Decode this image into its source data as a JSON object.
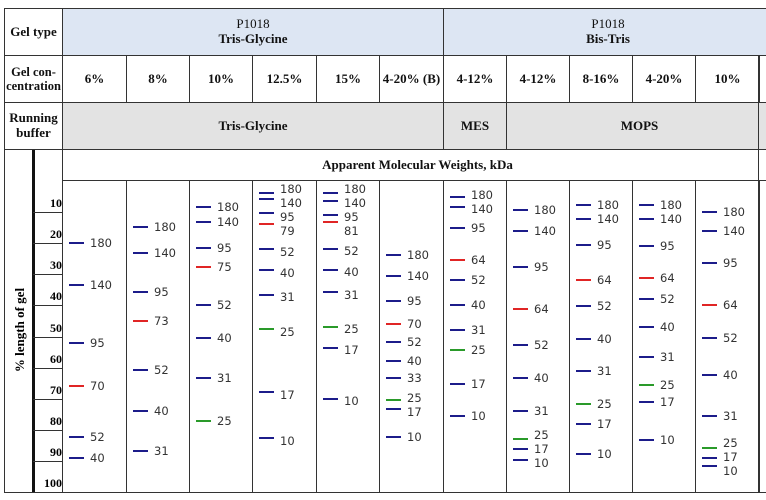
{
  "header": {
    "gel_type_label": "Gel type",
    "gel_conc_label": "Gel con-centration",
    "running_buffer_label": "Running buffer",
    "groups": [
      {
        "product": "P1018",
        "chemistry": "Tris-Glycine"
      },
      {
        "product": "P1018",
        "chemistry": "Bis-Tris"
      }
    ],
    "buffers": [
      "Tris-Glycine",
      "MES",
      "MOPS"
    ],
    "mw_title": "Apparent Molecular Weights, kDa"
  },
  "axis": {
    "label": "% length of gel",
    "ticks": [
      "10",
      "20",
      "30",
      "40",
      "50",
      "60",
      "70",
      "80",
      "90",
      "100"
    ]
  },
  "colors": {
    "standard": "#1c1c8a",
    "reference_red": "#e02525",
    "reference_green": "#2a9a2a",
    "header_blue": "#dde6f3",
    "header_gray": "#e3e3e3"
  },
  "chart_data": {
    "type": "table",
    "ylabel": "% length of gel",
    "ylim": [
      0,
      100
    ],
    "lanes": [
      {
        "concentration": "6%",
        "bands": [
          [
            180,
            19.8,
            "b"
          ],
          [
            140,
            33.5,
            "b"
          ],
          [
            95,
            52,
            "b"
          ],
          [
            70,
            65.8,
            "r"
          ],
          [
            52,
            82.3,
            "b"
          ],
          [
            40,
            89,
            "b"
          ]
        ]
      },
      {
        "concentration": "8%",
        "bands": [
          [
            180,
            14.7,
            "b"
          ],
          [
            140,
            23,
            "b"
          ],
          [
            95,
            35.6,
            "b"
          ],
          [
            73,
            45,
            "r"
          ],
          [
            52,
            60.8,
            "b"
          ],
          [
            40,
            73.8,
            "b"
          ],
          [
            31,
            86.7,
            "b"
          ]
        ]
      },
      {
        "concentration": "10%",
        "bands": [
          [
            180,
            8.3,
            "b"
          ],
          [
            140,
            13.2,
            "b"
          ],
          [
            95,
            21.4,
            "b"
          ],
          [
            75,
            27.7,
            "r"
          ],
          [
            52,
            40,
            "b"
          ],
          [
            40,
            50.5,
            "b"
          ],
          [
            31,
            63.2,
            "b"
          ],
          [
            25,
            77.2,
            "g"
          ]
        ]
      },
      {
        "concentration": "12.5%",
        "bands": [
          [
            180,
            3.9,
            "b"
          ],
          [
            140,
            5.7,
            "b"
          ],
          [
            95,
            10.2,
            "b"
          ],
          [
            79,
            13.8,
            "r"
          ],
          [
            52,
            21.8,
            "b"
          ],
          [
            40,
            28.6,
            "b"
          ],
          [
            31,
            36.5,
            "b"
          ],
          [
            25,
            47.6,
            "g"
          ],
          [
            17,
            68,
            "b"
          ],
          [
            10,
            82.6,
            "b"
          ]
        ]
      },
      {
        "concentration": "15%",
        "bands": [
          [
            180,
            4,
            "b"
          ],
          [
            140,
            6.5,
            "b"
          ],
          [
            95,
            10.8,
            "b"
          ],
          [
            81,
            13.2,
            "r"
          ],
          [
            52,
            21.8,
            "b"
          ],
          [
            40,
            28.5,
            "b"
          ],
          [
            31,
            35.8,
            "b"
          ],
          [
            25,
            46.8,
            "g"
          ],
          [
            17,
            53.6,
            "b"
          ],
          [
            10,
            70,
            "b"
          ]
        ]
      },
      {
        "concentration": "4-20% (B)",
        "bands": [
          [
            180,
            23.8,
            "b"
          ],
          [
            140,
            30.4,
            "b"
          ],
          [
            95,
            38.6,
            "b"
          ],
          [
            70,
            46.1,
            "r"
          ],
          [
            52,
            51.9,
            "b"
          ],
          [
            40,
            57.9,
            "b"
          ],
          [
            33,
            63.2,
            "b"
          ],
          [
            25,
            70.4,
            "g"
          ],
          [
            17,
            73.4,
            "b"
          ],
          [
            10,
            82.2,
            "b"
          ]
        ]
      },
      {
        "concentration": "4-12%",
        "bands": [
          [
            180,
            5.1,
            "b"
          ],
          [
            140,
            8.3,
            "b"
          ],
          [
            95,
            15.1,
            "b"
          ],
          [
            64,
            25.5,
            "r"
          ],
          [
            52,
            31.7,
            "b"
          ],
          [
            40,
            40,
            "b"
          ],
          [
            31,
            47.9,
            "b"
          ],
          [
            25,
            54.3,
            "g"
          ],
          [
            17,
            65.4,
            "b"
          ],
          [
            10,
            75.6,
            "b"
          ]
        ]
      },
      {
        "concentration": "4-12%",
        "bands": [
          [
            180,
            9.4,
            "b"
          ],
          [
            140,
            16.1,
            "b"
          ],
          [
            95,
            27.5,
            "b"
          ],
          [
            64,
            41.2,
            "r"
          ],
          [
            52,
            52.6,
            "b"
          ],
          [
            40,
            63.3,
            "b"
          ],
          [
            31,
            74,
            "b"
          ],
          [
            25,
            83,
            "g"
          ],
          [
            17,
            86.3,
            "b"
          ],
          [
            10,
            89.7,
            "b"
          ]
        ]
      },
      {
        "concentration": "8-16%",
        "bands": [
          [
            180,
            7.7,
            "b"
          ],
          [
            140,
            12.2,
            "b"
          ],
          [
            95,
            20.7,
            "b"
          ],
          [
            64,
            31.8,
            "r"
          ],
          [
            52,
            40.2,
            "b"
          ],
          [
            40,
            50.8,
            "b"
          ],
          [
            31,
            61.1,
            "b"
          ],
          [
            25,
            71.6,
            "g"
          ],
          [
            17,
            78,
            "b"
          ],
          [
            10,
            87.8,
            "b"
          ]
        ]
      },
      {
        "concentration": "4-20%",
        "bands": [
          [
            180,
            7.7,
            "b"
          ],
          [
            140,
            12.3,
            "b"
          ],
          [
            95,
            20.8,
            "b"
          ],
          [
            64,
            31.1,
            "r"
          ],
          [
            52,
            38,
            "b"
          ],
          [
            40,
            46.8,
            "b"
          ],
          [
            31,
            56.5,
            "b"
          ],
          [
            25,
            65.5,
            "g"
          ],
          [
            17,
            71.2,
            "b"
          ],
          [
            10,
            83.3,
            "b"
          ]
        ]
      },
      {
        "concentration": "10%",
        "bands": [
          [
            180,
            10.1,
            "b"
          ],
          [
            140,
            16,
            "b"
          ],
          [
            95,
            26.3,
            "b"
          ],
          [
            64,
            39.8,
            "r"
          ],
          [
            52,
            50.5,
            "b"
          ],
          [
            40,
            62.4,
            "b"
          ],
          [
            31,
            75.7,
            "b"
          ],
          [
            25,
            85.9,
            "g"
          ],
          [
            17,
            89.2,
            "b"
          ],
          [
            10,
            91.6,
            "b"
          ]
        ]
      }
    ]
  }
}
